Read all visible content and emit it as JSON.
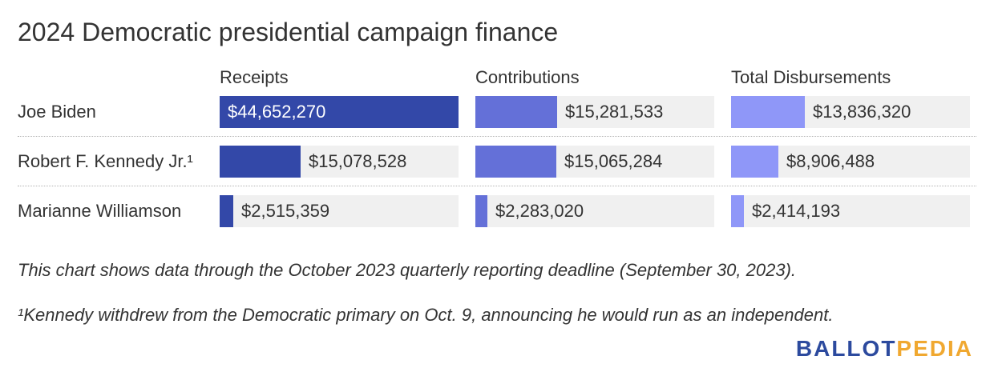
{
  "title": "2024 Democratic presidential campaign finance",
  "chart_data": {
    "type": "bar",
    "title": "2024 Democratic presidential campaign finance",
    "categories": [
      "Joe Biden",
      "Robert F. Kennedy Jr.¹",
      "Marianne Williamson"
    ],
    "series": [
      {
        "name": "Receipts",
        "values": [
          44652270,
          15078528,
          2515359
        ],
        "labels": [
          "$44,652,270",
          "$15,078,528",
          "$2,515,359"
        ],
        "color": "#3348a8"
      },
      {
        "name": "Contributions",
        "values": [
          15281533,
          15065284,
          2283020
        ],
        "labels": [
          "$15,281,533",
          "$15,065,284",
          "$2,283,020"
        ],
        "color": "#6470d8"
      },
      {
        "name": "Total Disbursements",
        "values": [
          13836320,
          8906488,
          2414193
        ],
        "labels": [
          "$13,836,320",
          "$8,906,488",
          "$2,414,193"
        ],
        "color": "#8f97f8"
      }
    ],
    "xlim": [
      0,
      44652270
    ]
  },
  "notes": [
    "This chart shows data through the October 2023 quarterly reporting deadline (September 30, 2023).",
    "¹Kennedy withdrew from the Democratic primary on Oct. 9, announcing he would run as an independent."
  ],
  "logo": {
    "part1": "BALLOT",
    "part2": "PEDIA"
  }
}
